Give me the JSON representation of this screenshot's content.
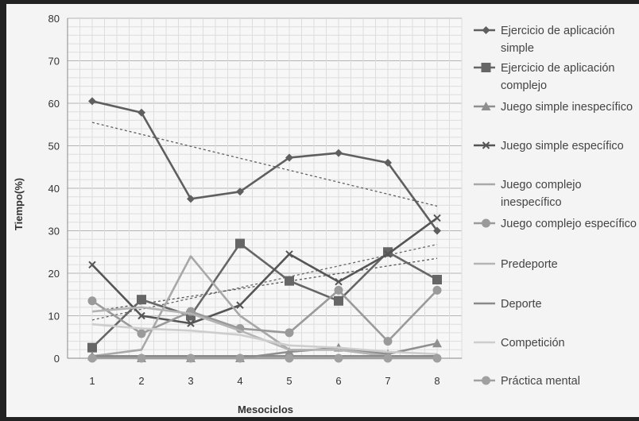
{
  "chart_data": {
    "type": "line",
    "title": "",
    "xlabel": "Mesociclos",
    "ylabel": "Tiempo(%)",
    "categories": [
      "1",
      "2",
      "3",
      "4",
      "5",
      "6",
      "7",
      "8"
    ],
    "ylim": [
      0,
      80
    ],
    "yticks": [
      "0",
      "10",
      "20",
      "30",
      "40",
      "50",
      "60",
      "70",
      "80"
    ],
    "grid": true,
    "legend_position": "right",
    "series": [
      {
        "name": "Ejercicio de aplicación simple",
        "marker": "diamond",
        "color": "#5f5f5f",
        "values": [
          60.5,
          57.8,
          37.5,
          39.2,
          47.2,
          48.3,
          46.0,
          30.0
        ],
        "trendline": [
          55.5,
          35.8
        ]
      },
      {
        "name": "Ejercicio de aplicación complejo",
        "marker": "square",
        "color": "#666666",
        "values": [
          2.5,
          13.8,
          10.0,
          27.0,
          18.2,
          13.5,
          25.0,
          18.5
        ],
        "trendline": [
          9.0,
          26.8
        ]
      },
      {
        "name": "Juego simple inespecífico",
        "marker": "triangle",
        "color": "#8f8f8f",
        "values": [
          0.5,
          0.0,
          0.0,
          0.0,
          1.5,
          2.5,
          1.0,
          3.5
        ]
      },
      {
        "name": "Juego simple específico",
        "marker": "x",
        "color": "#555555",
        "values": [
          22.0,
          10.0,
          8.2,
          12.5,
          24.5,
          18.0,
          24.5,
          33.0
        ],
        "trendline": [
          11.0,
          23.5
        ]
      },
      {
        "name": "Juego complejo inespecífico",
        "marker": "none",
        "color": "#a8a8a8",
        "values": [
          0.5,
          2.0,
          24.0,
          10.0,
          2.0,
          2.0,
          0.5,
          0.5
        ]
      },
      {
        "name": "Juego complejo específico",
        "marker": "circle",
        "color": "#9a9a9a",
        "values": [
          13.5,
          5.8,
          11.0,
          7.0,
          6.0,
          16.0,
          4.0,
          16.0
        ]
      },
      {
        "name": "Predeporte",
        "marker": "none",
        "color": "#b4b4b4",
        "values": [
          11.0,
          12.0,
          10.5,
          6.5,
          2.0,
          2.0,
          0.5,
          0.5
        ]
      },
      {
        "name": "Deporte",
        "marker": "none",
        "color": "#8a8a8a",
        "values": [
          0.5,
          0.5,
          0.5,
          0.5,
          0.5,
          0.5,
          0.5,
          0.5
        ]
      },
      {
        "name": "Competición",
        "marker": "none",
        "color": "#cdcdcd",
        "values": [
          8.0,
          7.0,
          6.5,
          5.5,
          3.0,
          2.5,
          1.5,
          1.0
        ]
      },
      {
        "name": "Práctica mental",
        "marker": "circle",
        "color": "#a0a0a0",
        "values": [
          0.0,
          0.0,
          0.0,
          0.0,
          0.0,
          0.0,
          0.0,
          0.0
        ]
      }
    ]
  }
}
